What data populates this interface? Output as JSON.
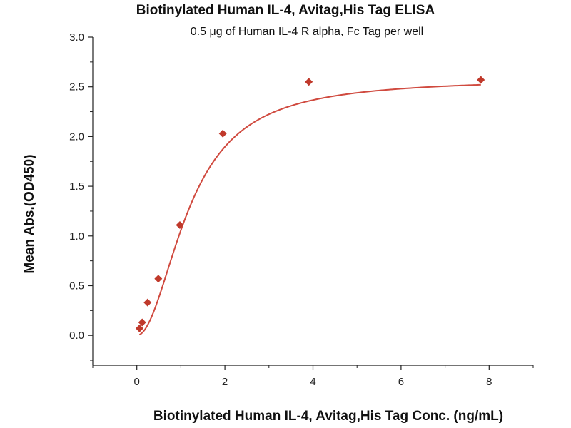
{
  "chart_data": {
    "type": "scatter",
    "title": "Biotinylated Human IL-4, Avitag,His Tag ELISA",
    "subtitle": "0.5 μg of Human IL-4 R alpha, Fc Tag per well",
    "xlabel": "Biotinylated Human IL-4, Avitag,His Tag Conc. (ng/mL)",
    "ylabel": "Mean Abs.(OD450)",
    "xlim": [
      -1,
      9
    ],
    "ylim": [
      -0.3,
      3.0
    ],
    "xticks": [
      0,
      2,
      4,
      6,
      8
    ],
    "yticks": [
      0.0,
      0.5,
      1.0,
      1.5,
      2.0,
      2.5,
      3.0
    ],
    "xtick_labels": [
      "0",
      "2",
      "4",
      "6",
      "8"
    ],
    "ytick_labels": [
      "0.0",
      "0.5",
      "1.0",
      "1.5",
      "2.0",
      "2.5",
      "3.0"
    ],
    "grid": false,
    "marker_color": "#c0392b",
    "line_color": "#d04a3f",
    "points": {
      "x": [
        0.061,
        0.122,
        0.244,
        0.488,
        0.977,
        1.953,
        3.906,
        7.813
      ],
      "y": [
        0.07,
        0.13,
        0.33,
        0.57,
        1.11,
        2.03,
        2.55,
        2.57
      ]
    },
    "fit": {
      "model": "4PL",
      "bottom": 0.0,
      "top": 2.58,
      "ec50": 1.2,
      "hill": 2.0
    }
  }
}
